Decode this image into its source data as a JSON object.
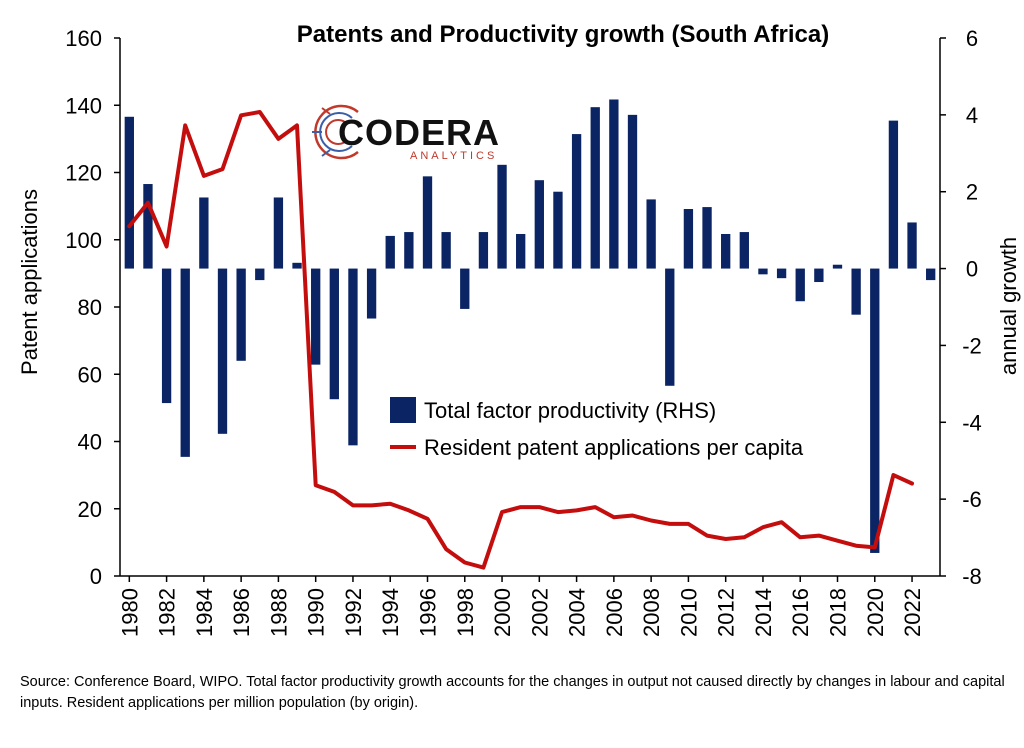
{
  "chart_data": {
    "type": "bar+line",
    "title": "Patents and Productivity growth (South Africa)",
    "y_left_label": "Patent applications",
    "y_right_label": "annual growth",
    "y_left_lim": [
      0,
      160
    ],
    "y_left_ticks": [
      0,
      20,
      40,
      60,
      80,
      100,
      120,
      140,
      160
    ],
    "y_right_lim": [
      -8,
      6
    ],
    "y_right_ticks": [
      -8,
      -6,
      -4,
      -2,
      0,
      2,
      4,
      6
    ],
    "x_tick_labels": [
      "1980",
      "1982",
      "1984",
      "1986",
      "1988",
      "1990",
      "1992",
      "1994",
      "1996",
      "1998",
      "2000",
      "2002",
      "2004",
      "2006",
      "2008",
      "2010",
      "2012",
      "2014",
      "2016",
      "2018",
      "2020",
      "2022"
    ],
    "years": [
      1980,
      1981,
      1982,
      1983,
      1984,
      1985,
      1986,
      1987,
      1988,
      1989,
      1990,
      1991,
      1992,
      1993,
      1994,
      1995,
      1996,
      1997,
      1998,
      1999,
      2000,
      2001,
      2002,
      2003,
      2004,
      2005,
      2006,
      2007,
      2008,
      2009,
      2010,
      2011,
      2012,
      2013,
      2014,
      2015,
      2016,
      2017,
      2018,
      2019,
      2020,
      2021,
      2022,
      2023
    ],
    "legend_position": "center",
    "grid": false,
    "series": [
      {
        "name": "Total factor productivity (RHS)",
        "kind": "bar",
        "axis": "right",
        "color": "#0b2463",
        "values": [
          3.95,
          2.2,
          -3.5,
          -4.9,
          1.85,
          -4.3,
          -2.4,
          -0.3,
          1.85,
          0.15,
          -2.5,
          -3.4,
          -4.6,
          -1.3,
          0.85,
          0.95,
          2.4,
          0.95,
          -1.05,
          0.95,
          2.7,
          0.9,
          2.3,
          2.0,
          3.5,
          4.2,
          4.4,
          4.0,
          1.8,
          -3.05,
          1.55,
          1.6,
          0.9,
          0.95,
          -0.15,
          -0.25,
          -0.85,
          -0.35,
          0.1,
          -1.2,
          -7.4,
          3.85,
          1.2,
          -0.3
        ]
      },
      {
        "name": "Resident patent applications per capita",
        "kind": "line",
        "axis": "left",
        "color": "#c40e0e",
        "values": [
          104,
          111,
          98,
          134,
          119,
          121,
          137,
          138,
          130,
          134,
          27,
          25,
          21,
          21,
          21.5,
          19.5,
          17,
          8,
          4,
          2.5,
          19,
          20.5,
          20.5,
          19,
          19.5,
          20.5,
          17.5,
          18,
          16.5,
          15.5,
          15.5,
          12,
          11,
          11.5,
          14.5,
          16,
          11.5,
          12,
          10.5,
          9,
          8.5,
          30,
          27.5,
          null
        ]
      }
    ]
  },
  "legend": {
    "bar_label": "Total factor productivity (RHS)",
    "line_label": "Resident patent applications per capita"
  },
  "logo": {
    "word": "CODERA",
    "sub": "ANALYTICS"
  },
  "source_text": "Source: Conference Board, WIPO. Total factor productivity growth accounts for the changes in output not caused directly by changes in labour and capital inputs. Resident applications per million population (by origin)."
}
